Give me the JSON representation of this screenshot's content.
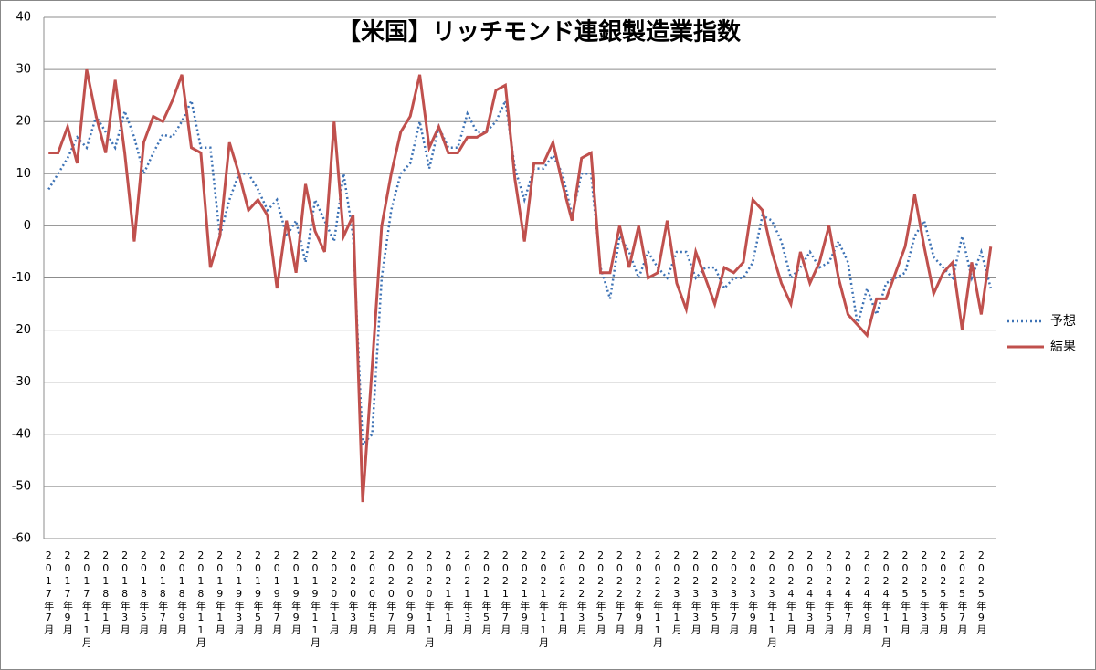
{
  "chart_data": {
    "type": "line",
    "title": "【米国】リッチモンド連銀製造業指数",
    "categories": [
      "2017年7月",
      null,
      "2017年9月",
      null,
      "2017年11月",
      null,
      "2018年1月",
      null,
      "2018年3月",
      null,
      "2018年5月",
      null,
      "2018年7月",
      null,
      "2018年9月",
      null,
      "2018年11月",
      null,
      "2019年1月",
      null,
      "2019年3月",
      null,
      "2019年5月",
      null,
      "2019年7月",
      null,
      "2019年9月",
      null,
      "2019年11月",
      null,
      "2020年1月",
      null,
      "2020年3月",
      null,
      "2020年5月",
      null,
      "2020年7月",
      null,
      "2020年9月",
      null,
      "2020年11月",
      null,
      "2021年1月",
      null,
      "2021年3月",
      null,
      "2021年5月",
      null,
      "2021年7月",
      null,
      "2021年9月",
      null,
      "2021年11月",
      null,
      "2022年1月",
      null,
      "2022年3月",
      null,
      "2022年5月",
      null,
      "2022年7月",
      null,
      "2022年9月",
      null,
      "2022年11月",
      null,
      "2023年1月",
      null,
      "2023年3月",
      null,
      "2023年5月",
      null,
      "2023年7月",
      null,
      "2023年9月",
      null,
      "2023年11月",
      null,
      "2024年1月",
      null,
      "2024年3月",
      null,
      "2024年5月",
      null,
      "2024年7月",
      null,
      "2024年9月",
      null,
      "2024年11月",
      null,
      "2025年1月",
      null,
      "2025年3月",
      null,
      "2025年5月",
      null,
      "2025年7月",
      null,
      "2025年9月",
      null
    ],
    "series": [
      {
        "name": "予想",
        "color": "#3d72b5",
        "dash": true,
        "values": [
          7,
          10,
          13,
          17,
          15,
          21,
          18,
          15,
          22,
          17,
          10,
          14,
          17.5,
          17,
          20,
          24,
          15,
          15,
          -2,
          5,
          10,
          10,
          7,
          3,
          5,
          -2,
          1,
          -7,
          5,
          1,
          -3,
          10,
          -2,
          -42,
          -40,
          -10,
          3,
          10,
          12,
          20,
          11,
          19,
          15,
          15,
          21.5,
          18,
          18,
          20,
          24,
          11,
          5,
          11,
          11,
          13.5,
          10,
          2,
          10,
          10,
          -8,
          -14,
          -2,
          -5,
          -10,
          -5,
          -8,
          -10,
          -5,
          -5,
          -10,
          -8,
          -8,
          -12,
          -10,
          -10,
          -7,
          2,
          1,
          -3,
          -10,
          -8,
          -5,
          -8,
          -7,
          -3,
          -7,
          -19,
          -12,
          -17,
          -11,
          -10,
          -9,
          -2,
          1,
          -6,
          -8,
          -10,
          -2,
          -10,
          -5,
          -12
        ]
      },
      {
        "name": "結果",
        "color": "#c0504d",
        "dash": false,
        "values": [
          14,
          14,
          19,
          12,
          30,
          21,
          14,
          28,
          14,
          -3,
          16,
          21,
          20,
          24,
          29,
          15,
          14,
          -8,
          -2,
          16,
          10,
          3,
          5,
          2,
          -12,
          1,
          -9,
          8,
          -1,
          -5,
          20,
          -2,
          2,
          -53,
          -27,
          0,
          10,
          18,
          21,
          29,
          15,
          19,
          14,
          14,
          17,
          17,
          18,
          26,
          27,
          9,
          -3,
          12,
          12,
          16,
          8,
          1,
          13,
          14,
          -9,
          -9,
          0,
          -8,
          0,
          -10,
          -9,
          1,
          -11,
          -16,
          -5,
          -10,
          -15,
          -8,
          -9,
          -7,
          5,
          3,
          -5,
          -11,
          -15,
          -5,
          -11,
          -7,
          0,
          -10,
          -17,
          -19,
          -21,
          -14,
          -14,
          -9,
          -4,
          6,
          -4,
          -13,
          -9,
          -7,
          -20,
          -7,
          -17,
          -4
        ]
      }
    ],
    "ylim": [
      -60,
      40
    ],
    "yticks": [
      -60,
      -50,
      -40,
      -30,
      -20,
      -10,
      0,
      10,
      20,
      30,
      40
    ],
    "grid": true,
    "legend": "right"
  }
}
